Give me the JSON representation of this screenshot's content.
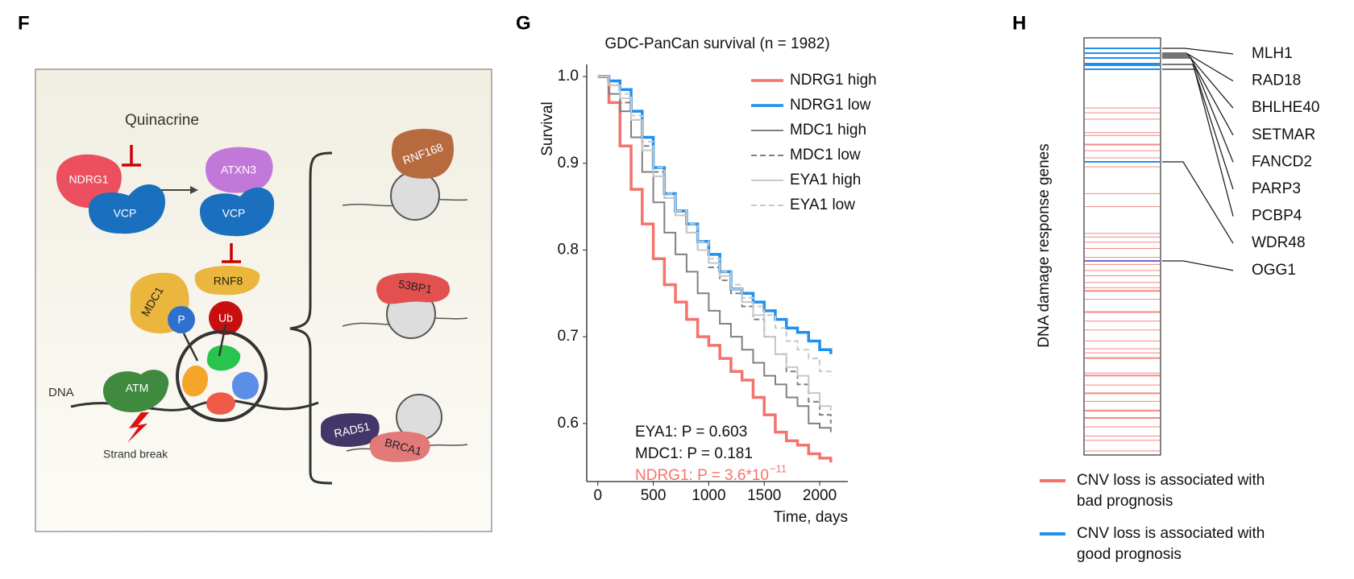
{
  "panel_labels": [
    "F",
    "G",
    "H"
  ],
  "diagram": {
    "quinacrine": "Quinacrine",
    "ndrg1": "NDRG1",
    "vcp_left": "VCP",
    "atxn3": "ATXN3",
    "vcp_right": "VCP",
    "rnf8": "RNF8",
    "mdc1": "MDC1",
    "p": "P",
    "ub": "Ub",
    "atm": "ATM",
    "dna": "DNA",
    "strand_break": "Strand break",
    "rnf168": "RNF168",
    "bp53": "53BP1",
    "rad51": "RAD51",
    "brca1": "BRCA1"
  },
  "chart_data": {
    "type": "line",
    "step": true,
    "title": "GDC-PanCan survival (n = 1982)",
    "x_label": "Time, days",
    "y_label": "Survival",
    "x": [
      0,
      100,
      200,
      300,
      400,
      500,
      600,
      700,
      800,
      900,
      1000,
      1100,
      1200,
      1300,
      1400,
      1500,
      1600,
      1700,
      1800,
      1900,
      2000,
      2100
    ],
    "series": [
      {
        "name": "NDRG1 high",
        "color": "#f4736b",
        "line_width": 3.5,
        "dashed": false,
        "values": [
          1.0,
          0.97,
          0.92,
          0.87,
          0.83,
          0.79,
          0.76,
          0.74,
          0.72,
          0.7,
          0.69,
          0.675,
          0.66,
          0.65,
          0.63,
          0.61,
          0.59,
          0.58,
          0.575,
          0.565,
          0.56,
          0.555
        ]
      },
      {
        "name": "NDRG1 low",
        "color": "#1e90ef",
        "line_width": 3.5,
        "dashed": false,
        "values": [
          1.0,
          0.995,
          0.985,
          0.96,
          0.93,
          0.895,
          0.865,
          0.845,
          0.83,
          0.81,
          0.795,
          0.775,
          0.755,
          0.75,
          0.74,
          0.73,
          0.72,
          0.71,
          0.705,
          0.695,
          0.685,
          0.68
        ]
      },
      {
        "name": "MDC1 high",
        "color": "#808080",
        "line_width": 2,
        "dashed": false,
        "values": [
          1.0,
          0.98,
          0.96,
          0.93,
          0.89,
          0.855,
          0.82,
          0.795,
          0.775,
          0.75,
          0.73,
          0.715,
          0.7,
          0.685,
          0.67,
          0.655,
          0.645,
          0.63,
          0.62,
          0.6,
          0.595,
          0.59
        ]
      },
      {
        "name": "MDC1 low",
        "color": "#808080",
        "line_width": 2,
        "dashed": true,
        "values": [
          1.0,
          0.99,
          0.97,
          0.95,
          0.92,
          0.89,
          0.86,
          0.84,
          0.82,
          0.8,
          0.78,
          0.765,
          0.75,
          0.735,
          0.72,
          0.7,
          0.68,
          0.66,
          0.645,
          0.625,
          0.61,
          0.6
        ]
      },
      {
        "name": "EYA1 high",
        "color": "#c8c8c8",
        "line_width": 2,
        "dashed": false,
        "values": [
          1.0,
          0.99,
          0.975,
          0.95,
          0.915,
          0.885,
          0.86,
          0.84,
          0.82,
          0.8,
          0.785,
          0.77,
          0.755,
          0.74,
          0.725,
          0.7,
          0.68,
          0.665,
          0.655,
          0.635,
          0.62,
          0.615
        ]
      },
      {
        "name": "EYA1 low",
        "color": "#c8c8c8",
        "line_width": 2,
        "dashed": true,
        "values": [
          1.0,
          0.99,
          0.98,
          0.955,
          0.925,
          0.895,
          0.865,
          0.845,
          0.83,
          0.81,
          0.79,
          0.775,
          0.76,
          0.745,
          0.735,
          0.725,
          0.71,
          0.695,
          0.685,
          0.675,
          0.66,
          0.655
        ]
      }
    ],
    "xlim": [
      -100,
      2254
    ],
    "xticks": [
      0,
      500,
      1000,
      1500,
      2000
    ],
    "ylim": [
      0.533,
      1.014
    ],
    "yticks": [
      0.6,
      0.7,
      0.8,
      0.9,
      {
        "value": 1,
        "label": "1.0"
      }
    ],
    "grid": false,
    "legend": "upper right",
    "annotations": [
      {
        "text": "EYA1: P = 0.603",
        "color": "#111111"
      },
      {
        "text": "MDC1: P = 0.181",
        "color": "#111111"
      },
      {
        "text": "NDRG1: P = 3.6*10",
        "superscript": "−11",
        "color": "#f4736b"
      }
    ]
  },
  "gene_panel": {
    "y_label": "DNA damage response genes",
    "genes": [
      "MLH1",
      "RAD18",
      "BHLHE40",
      "SETMAR",
      "FANCD2",
      "PARP3",
      "PCBP4",
      "WDR48",
      "OGG1"
    ],
    "legend": [
      {
        "lines": [
          "CNV loss is associated with",
          "bad prognosis"
        ],
        "color": "#f4736b"
      },
      {
        "lines": [
          "CNV loss is associated with",
          "good prognosis"
        ],
        "color": "#1e90ef"
      }
    ]
  }
}
